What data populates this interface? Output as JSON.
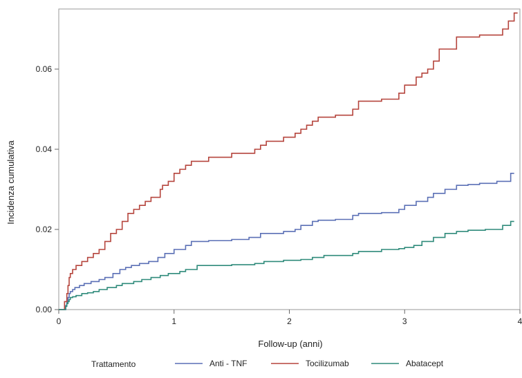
{
  "chart_data": {
    "type": "line",
    "xlabel": "Follow-up (anni)",
    "ylabel": "Incidenza cumulativa",
    "xlim": [
      0,
      4
    ],
    "ylim": [
      0,
      0.075
    ],
    "xticks": [
      0,
      1,
      2,
      3,
      4
    ],
    "yticks": [
      0.0,
      0.02,
      0.04,
      0.06
    ],
    "xtick_labels": [
      "0",
      "1",
      "2",
      "3",
      "4"
    ],
    "ytick_labels": [
      "0.00",
      "0.02",
      "0.04",
      "0.06"
    ],
    "legend_title": "Trattamento",
    "legend_position": "bottom",
    "grid": false,
    "step": true,
    "series": [
      {
        "name": "Anti - TNF",
        "color": "#5a6fb5",
        "x": [
          0,
          0.06,
          0.07,
          0.08,
          0.09,
          0.1,
          0.12,
          0.14,
          0.18,
          0.22,
          0.28,
          0.35,
          0.4,
          0.47,
          0.53,
          0.58,
          0.63,
          0.7,
          0.78,
          0.86,
          0.92,
          1.0,
          1.1,
          1.15,
          1.3,
          1.5,
          1.65,
          1.75,
          1.95,
          2.05,
          2.1,
          2.2,
          2.25,
          2.4,
          2.55,
          2.6,
          2.8,
          2.95,
          3.0,
          3.1,
          3.2,
          3.25,
          3.35,
          3.45,
          3.55,
          3.65,
          3.8,
          3.92
        ],
        "y": [
          0,
          0.001,
          0.002,
          0.003,
          0.004,
          0.0045,
          0.005,
          0.0055,
          0.006,
          0.0065,
          0.007,
          0.0075,
          0.008,
          0.009,
          0.01,
          0.0105,
          0.011,
          0.0115,
          0.012,
          0.013,
          0.014,
          0.015,
          0.016,
          0.017,
          0.0172,
          0.0175,
          0.018,
          0.019,
          0.0195,
          0.02,
          0.021,
          0.022,
          0.0223,
          0.0225,
          0.0235,
          0.024,
          0.0242,
          0.025,
          0.026,
          0.027,
          0.028,
          0.029,
          0.03,
          0.031,
          0.0312,
          0.0315,
          0.032,
          0.034
        ]
      },
      {
        "name": "Tocilizumab",
        "color": "#b5443c",
        "x": [
          0,
          0.05,
          0.07,
          0.08,
          0.09,
          0.1,
          0.12,
          0.15,
          0.2,
          0.25,
          0.3,
          0.35,
          0.4,
          0.45,
          0.5,
          0.55,
          0.6,
          0.65,
          0.7,
          0.75,
          0.8,
          0.88,
          0.9,
          0.95,
          1.0,
          1.05,
          1.1,
          1.15,
          1.3,
          1.5,
          1.7,
          1.75,
          1.8,
          1.95,
          2.05,
          2.1,
          2.15,
          2.2,
          2.25,
          2.4,
          2.55,
          2.6,
          2.8,
          2.95,
          3.0,
          3.1,
          3.15,
          3.2,
          3.25,
          3.3,
          3.45,
          3.65,
          3.85,
          3.9,
          3.95
        ],
        "y": [
          0,
          0.002,
          0.004,
          0.006,
          0.008,
          0.009,
          0.01,
          0.011,
          0.012,
          0.013,
          0.014,
          0.015,
          0.017,
          0.019,
          0.02,
          0.022,
          0.024,
          0.025,
          0.026,
          0.027,
          0.028,
          0.03,
          0.031,
          0.032,
          0.034,
          0.035,
          0.036,
          0.037,
          0.038,
          0.039,
          0.04,
          0.041,
          0.042,
          0.043,
          0.044,
          0.045,
          0.046,
          0.047,
          0.048,
          0.0485,
          0.05,
          0.052,
          0.0525,
          0.054,
          0.056,
          0.058,
          0.059,
          0.06,
          0.062,
          0.065,
          0.068,
          0.0685,
          0.07,
          0.072,
          0.074
        ]
      },
      {
        "name": "Abatacept",
        "color": "#2e8a7a",
        "x": [
          0,
          0.06,
          0.07,
          0.08,
          0.09,
          0.1,
          0.12,
          0.15,
          0.2,
          0.25,
          0.3,
          0.35,
          0.42,
          0.5,
          0.55,
          0.65,
          0.72,
          0.8,
          0.88,
          0.95,
          1.05,
          1.1,
          1.2,
          1.5,
          1.7,
          1.78,
          1.95,
          2.1,
          2.2,
          2.3,
          2.55,
          2.6,
          2.8,
          2.95,
          3.0,
          3.08,
          3.15,
          3.25,
          3.35,
          3.45,
          3.55,
          3.7,
          3.85,
          3.92
        ],
        "y": [
          0,
          0.0008,
          0.0015,
          0.002,
          0.0025,
          0.003,
          0.0032,
          0.0035,
          0.004,
          0.0042,
          0.0045,
          0.005,
          0.0055,
          0.006,
          0.0065,
          0.007,
          0.0075,
          0.008,
          0.0085,
          0.009,
          0.0095,
          0.01,
          0.011,
          0.0112,
          0.0115,
          0.012,
          0.0123,
          0.0125,
          0.013,
          0.0135,
          0.014,
          0.0145,
          0.015,
          0.0152,
          0.0155,
          0.016,
          0.017,
          0.018,
          0.019,
          0.0195,
          0.0198,
          0.02,
          0.021,
          0.022
        ]
      }
    ]
  }
}
